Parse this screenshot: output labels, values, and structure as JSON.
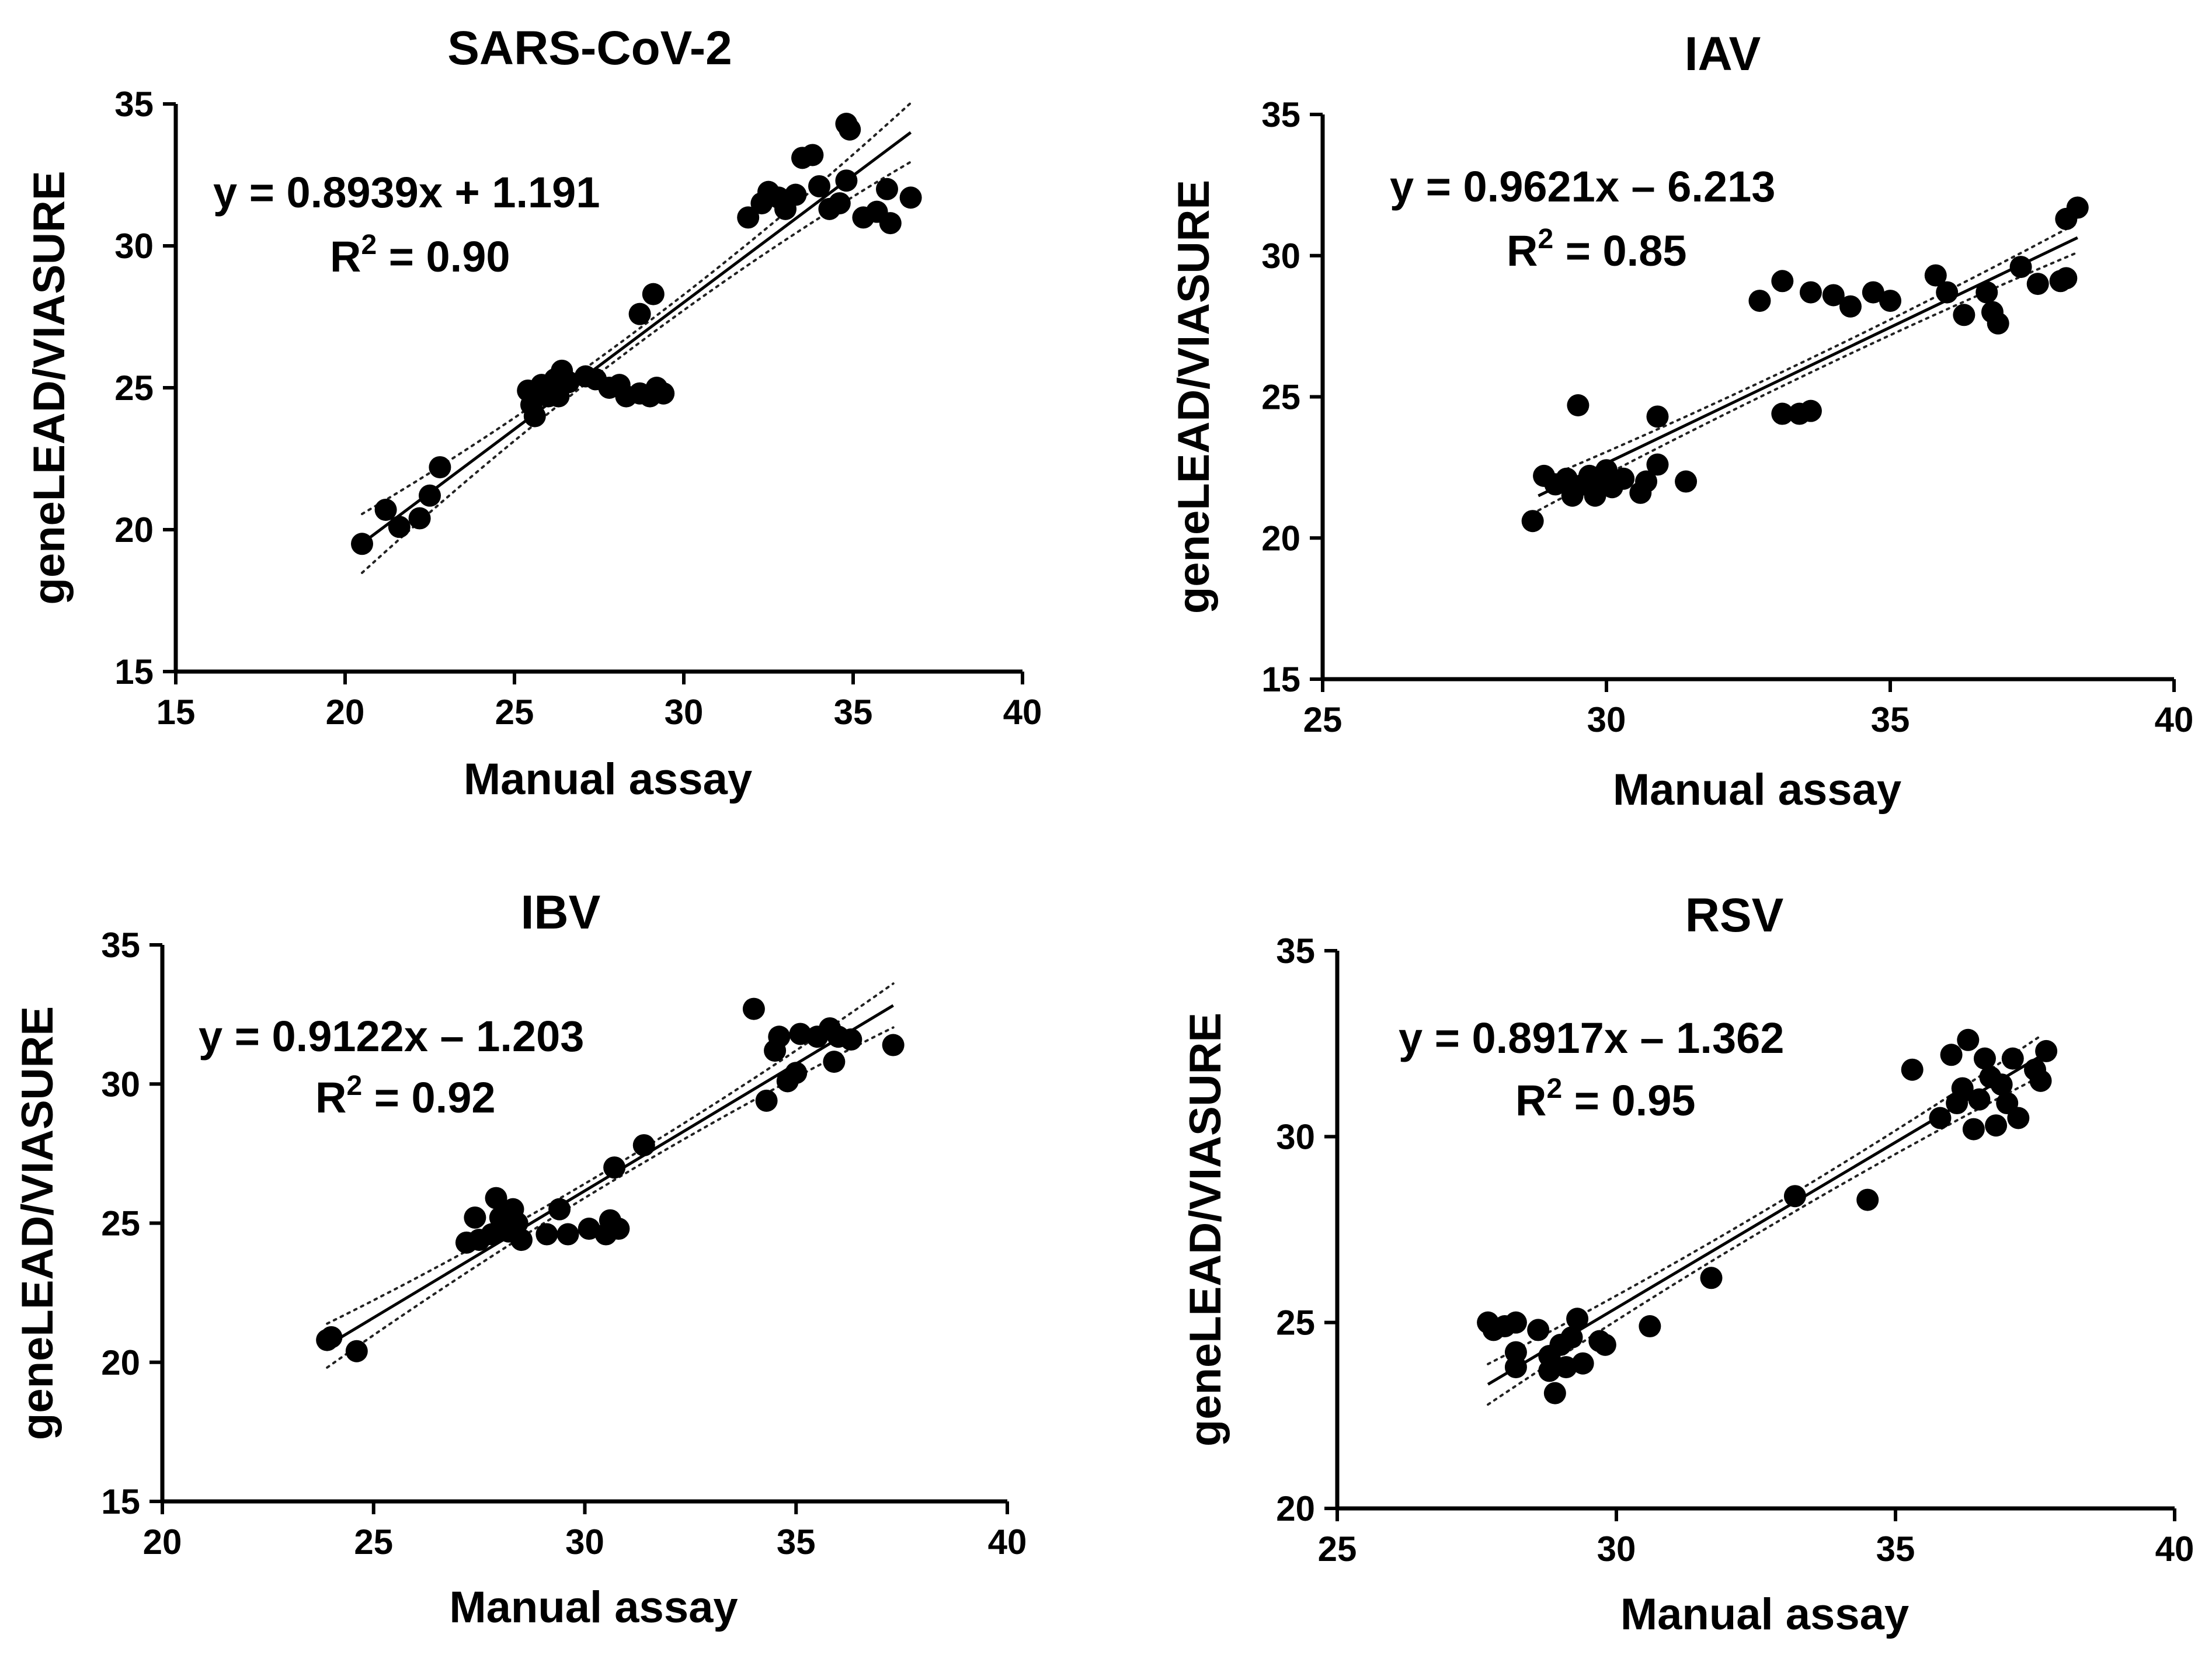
{
  "chart_data": [
    {
      "type": "scatter",
      "title": "SARS-CoV-2",
      "xlabel": "Manual assay",
      "ylabel": "geneLEAD/VIASURE",
      "xlim": [
        15,
        40
      ],
      "ylim": [
        15,
        35
      ],
      "xticks": [
        "15",
        "20",
        "25",
        "30",
        "35",
        "40"
      ],
      "yticks": [
        "15",
        "20",
        "25",
        "30",
        "35"
      ],
      "equation": "y = 0.8939x + 1.191",
      "r2_label": "R",
      "r2_sup": "2",
      "r2_value": " = 0.90",
      "fit": {
        "slope": 0.8939,
        "intercept": 1.191,
        "x_range": [
          20.5,
          36.7
        ]
      },
      "points": [
        [
          20.5,
          19.5
        ],
        [
          21.2,
          20.7
        ],
        [
          21.6,
          20.1
        ],
        [
          22.2,
          20.4
        ],
        [
          22.5,
          21.2
        ],
        [
          22.8,
          22.2
        ],
        [
          25.4,
          24.9
        ],
        [
          25.5,
          24.4
        ],
        [
          25.6,
          24.0
        ],
        [
          25.8,
          25.1
        ],
        [
          26.0,
          24.7
        ],
        [
          26.2,
          25.3
        ],
        [
          26.3,
          24.7
        ],
        [
          26.4,
          25.6
        ],
        [
          26.6,
          25.2
        ],
        [
          27.1,
          25.4
        ],
        [
          27.4,
          25.3
        ],
        [
          27.8,
          25.0
        ],
        [
          28.1,
          25.1
        ],
        [
          28.3,
          24.7
        ],
        [
          28.7,
          24.8
        ],
        [
          29.0,
          24.7
        ],
        [
          29.2,
          25.0
        ],
        [
          29.4,
          24.8
        ],
        [
          28.7,
          27.6
        ],
        [
          29.1,
          28.3
        ],
        [
          31.9,
          31.0
        ],
        [
          32.3,
          31.5
        ],
        [
          32.5,
          31.9
        ],
        [
          32.8,
          31.7
        ],
        [
          33.0,
          31.3
        ],
        [
          33.3,
          31.8
        ],
        [
          33.5,
          33.1
        ],
        [
          33.8,
          33.2
        ],
        [
          34.0,
          32.1
        ],
        [
          34.3,
          31.3
        ],
        [
          34.6,
          31.5
        ],
        [
          34.8,
          32.3
        ],
        [
          34.8,
          34.3
        ],
        [
          34.9,
          34.1
        ],
        [
          35.3,
          31.0
        ],
        [
          35.7,
          31.2
        ],
        [
          36.0,
          32.0
        ],
        [
          36.1,
          30.8
        ],
        [
          36.7,
          31.7
        ]
      ]
    },
    {
      "type": "scatter",
      "title": "IAV",
      "xlabel": "Manual assay",
      "ylabel": "geneLEAD/VIASURE",
      "xlim": [
        25,
        40
      ],
      "ylim": [
        15,
        35
      ],
      "xticks": [
        "25",
        "30",
        "35",
        "40"
      ],
      "yticks": [
        "15",
        "20",
        "25",
        "30",
        "35"
      ],
      "equation": "y = 0.9621x – 6.213",
      "r2_label": "R",
      "r2_sup": "2",
      "r2_value": " = 0.85",
      "fit": {
        "slope": 0.9621,
        "intercept": -6.213,
        "x_range": [
          28.8,
          38.3
        ]
      },
      "points": [
        [
          28.7,
          20.6
        ],
        [
          28.9,
          22.2
        ],
        [
          29.1,
          21.9
        ],
        [
          29.3,
          22.1
        ],
        [
          29.4,
          21.5
        ],
        [
          29.5,
          24.7
        ],
        [
          29.6,
          21.9
        ],
        [
          29.7,
          22.2
        ],
        [
          29.8,
          21.5
        ],
        [
          29.9,
          22.0
        ],
        [
          30.0,
          22.4
        ],
        [
          30.1,
          21.8
        ],
        [
          30.3,
          22.1
        ],
        [
          30.6,
          21.6
        ],
        [
          30.7,
          22.0
        ],
        [
          30.9,
          22.6
        ],
        [
          30.9,
          24.3
        ],
        [
          31.4,
          22.0
        ],
        [
          32.7,
          28.4
        ],
        [
          33.1,
          29.1
        ],
        [
          33.1,
          24.4
        ],
        [
          33.4,
          24.4
        ],
        [
          33.6,
          24.5
        ],
        [
          33.6,
          28.7
        ],
        [
          34.0,
          28.6
        ],
        [
          34.3,
          28.2
        ],
        [
          34.7,
          28.7
        ],
        [
          35.0,
          28.4
        ],
        [
          35.8,
          29.3
        ],
        [
          36.0,
          28.7
        ],
        [
          36.3,
          27.9
        ],
        [
          36.7,
          28.7
        ],
        [
          36.8,
          28.0
        ],
        [
          36.9,
          27.6
        ],
        [
          37.3,
          29.6
        ],
        [
          37.6,
          29.0
        ],
        [
          38.0,
          29.1
        ],
        [
          38.1,
          29.2
        ],
        [
          38.1,
          31.3
        ],
        [
          38.3,
          31.7
        ]
      ]
    },
    {
      "type": "scatter",
      "title": "IBV",
      "xlabel": "Manual assay",
      "ylabel": "geneLEAD/VIASURE",
      "xlim": [
        20,
        40
      ],
      "ylim": [
        15,
        35
      ],
      "xticks": [
        "20",
        "25",
        "30",
        "35",
        "40"
      ],
      "yticks": [
        "15",
        "20",
        "25",
        "30",
        "35"
      ],
      "equation": "y = 0.9122x – 1.203",
      "r2_label": "R",
      "r2_sup": "2",
      "r2_value": " = 0.92",
      "fit": {
        "slope": 0.9122,
        "intercept": -1.203,
        "x_range": [
          23.9,
          37.3
        ]
      },
      "points": [
        [
          23.9,
          20.8
        ],
        [
          24.0,
          20.9
        ],
        [
          24.6,
          20.4
        ],
        [
          27.2,
          24.3
        ],
        [
          27.4,
          25.2
        ],
        [
          27.5,
          24.4
        ],
        [
          27.8,
          24.6
        ],
        [
          27.9,
          25.9
        ],
        [
          28.0,
          25.2
        ],
        [
          28.2,
          24.7
        ],
        [
          28.3,
          25.5
        ],
        [
          28.4,
          25.0
        ],
        [
          28.5,
          24.4
        ],
        [
          29.1,
          24.6
        ],
        [
          29.4,
          25.5
        ],
        [
          29.6,
          24.6
        ],
        [
          30.1,
          24.8
        ],
        [
          30.5,
          24.6
        ],
        [
          30.6,
          25.1
        ],
        [
          30.7,
          27.0
        ],
        [
          30.8,
          24.8
        ],
        [
          31.4,
          27.8
        ],
        [
          34.0,
          32.7
        ],
        [
          34.3,
          29.4
        ],
        [
          34.5,
          31.2
        ],
        [
          34.6,
          31.7
        ],
        [
          34.8,
          30.1
        ],
        [
          35.0,
          30.4
        ],
        [
          35.1,
          31.8
        ],
        [
          35.5,
          31.7
        ],
        [
          35.8,
          32.0
        ],
        [
          35.9,
          30.8
        ],
        [
          36.0,
          31.7
        ],
        [
          36.3,
          31.6
        ],
        [
          37.3,
          31.4
        ]
      ]
    },
    {
      "type": "scatter",
      "title": "RSV",
      "xlabel": "Manual assay",
      "ylabel": "geneLEAD/VIASURE",
      "xlim": [
        25,
        40
      ],
      "ylim": [
        20,
        35
      ],
      "xticks": [
        "25",
        "30",
        "35",
        "40"
      ],
      "yticks": [
        "20",
        "25",
        "30",
        "35"
      ],
      "equation": "y = 0.8917x – 1.362",
      "r2_label": "R",
      "r2_sup": "2",
      "r2_value": " = 0.95",
      "fit": {
        "slope": 0.8917,
        "intercept": -1.362,
        "x_range": [
          27.7,
          37.6
        ]
      },
      "points": [
        [
          27.7,
          25.0
        ],
        [
          27.8,
          24.8
        ],
        [
          28.0,
          24.9
        ],
        [
          28.2,
          25.0
        ],
        [
          28.2,
          24.2
        ],
        [
          28.2,
          23.8
        ],
        [
          28.6,
          24.8
        ],
        [
          28.8,
          24.1
        ],
        [
          28.8,
          23.7
        ],
        [
          28.9,
          23.1
        ],
        [
          29.0,
          24.4
        ],
        [
          29.1,
          23.8
        ],
        [
          29.2,
          24.6
        ],
        [
          29.3,
          25.1
        ],
        [
          29.4,
          23.9
        ],
        [
          29.7,
          24.5
        ],
        [
          29.8,
          24.4
        ],
        [
          30.6,
          24.9
        ],
        [
          31.7,
          26.2
        ],
        [
          33.2,
          28.4
        ],
        [
          34.5,
          28.3
        ],
        [
          35.3,
          31.8
        ],
        [
          35.8,
          30.5
        ],
        [
          36.0,
          32.2
        ],
        [
          36.1,
          30.9
        ],
        [
          36.2,
          31.3
        ],
        [
          36.3,
          32.6
        ],
        [
          36.4,
          30.2
        ],
        [
          36.5,
          31.0
        ],
        [
          36.6,
          32.1
        ],
        [
          36.7,
          31.6
        ],
        [
          36.8,
          30.3
        ],
        [
          36.9,
          31.4
        ],
        [
          37.0,
          30.9
        ],
        [
          37.1,
          32.1
        ],
        [
          37.2,
          30.5
        ],
        [
          37.5,
          31.8
        ],
        [
          37.6,
          31.5
        ],
        [
          37.7,
          32.3
        ]
      ]
    }
  ]
}
